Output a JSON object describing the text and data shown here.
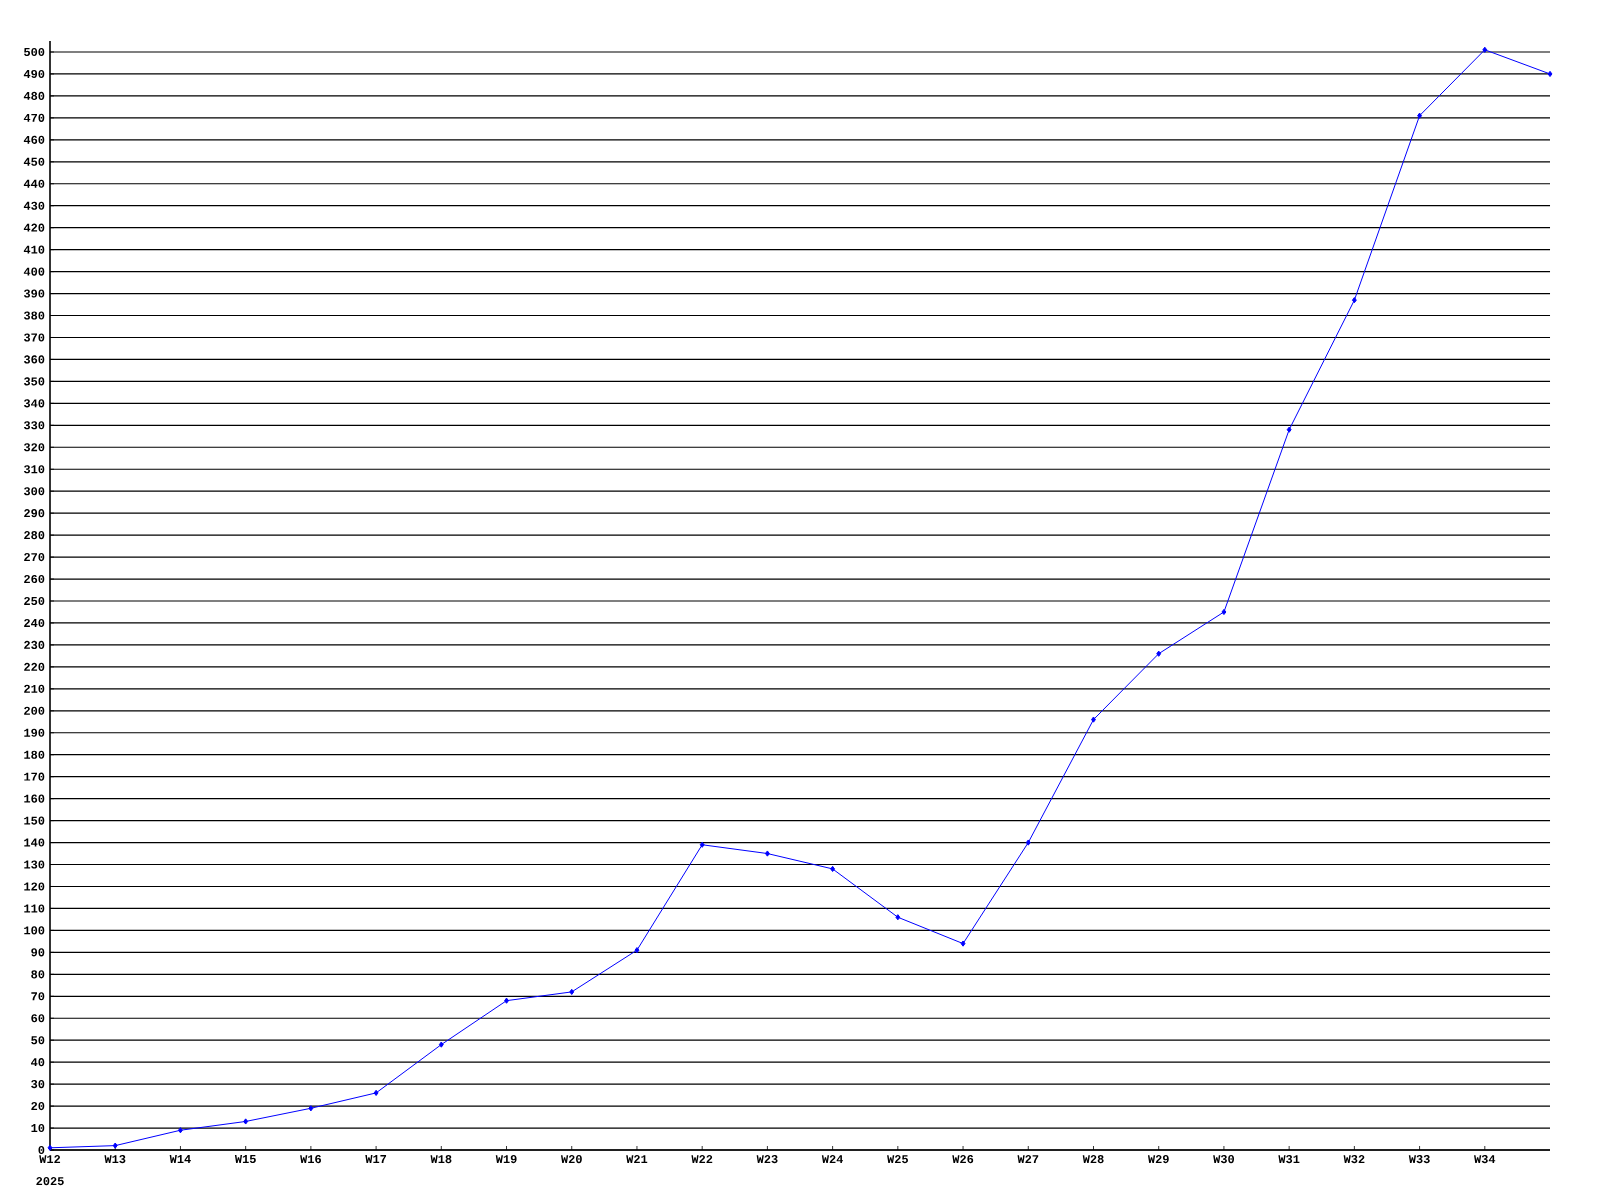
{
  "chart_data": {
    "type": "line",
    "categories": [
      "W12",
      "W13",
      "W14",
      "W15",
      "W16",
      "W17",
      "W18",
      "W19",
      "W20",
      "W21",
      "W22",
      "W23",
      "W24",
      "W25",
      "W26",
      "W27",
      "W28",
      "W29",
      "W30",
      "W31",
      "W32",
      "W33",
      "W34",
      null
    ],
    "values": [
      1,
      2,
      9,
      13,
      19,
      26,
      48,
      68,
      72,
      91,
      139,
      135,
      128,
      106,
      94,
      140,
      196,
      226,
      245,
      328,
      387,
      471,
      501,
      490
    ],
    "color": "#0000ff",
    "ylim": [
      0,
      505
    ],
    "yticks": [
      0,
      10,
      20,
      30,
      40,
      50,
      60,
      70,
      80,
      90,
      100,
      110,
      120,
      130,
      140,
      150,
      160,
      170,
      180,
      190,
      200,
      210,
      220,
      230,
      240,
      250,
      260,
      270,
      280,
      290,
      300,
      310,
      320,
      330,
      340,
      350,
      360,
      370,
      380,
      390,
      400,
      410,
      420,
      430,
      440,
      450,
      460,
      470,
      480,
      490,
      500
    ],
    "grid": "y",
    "marker": "diamond",
    "annotations": [
      "2025"
    ]
  }
}
